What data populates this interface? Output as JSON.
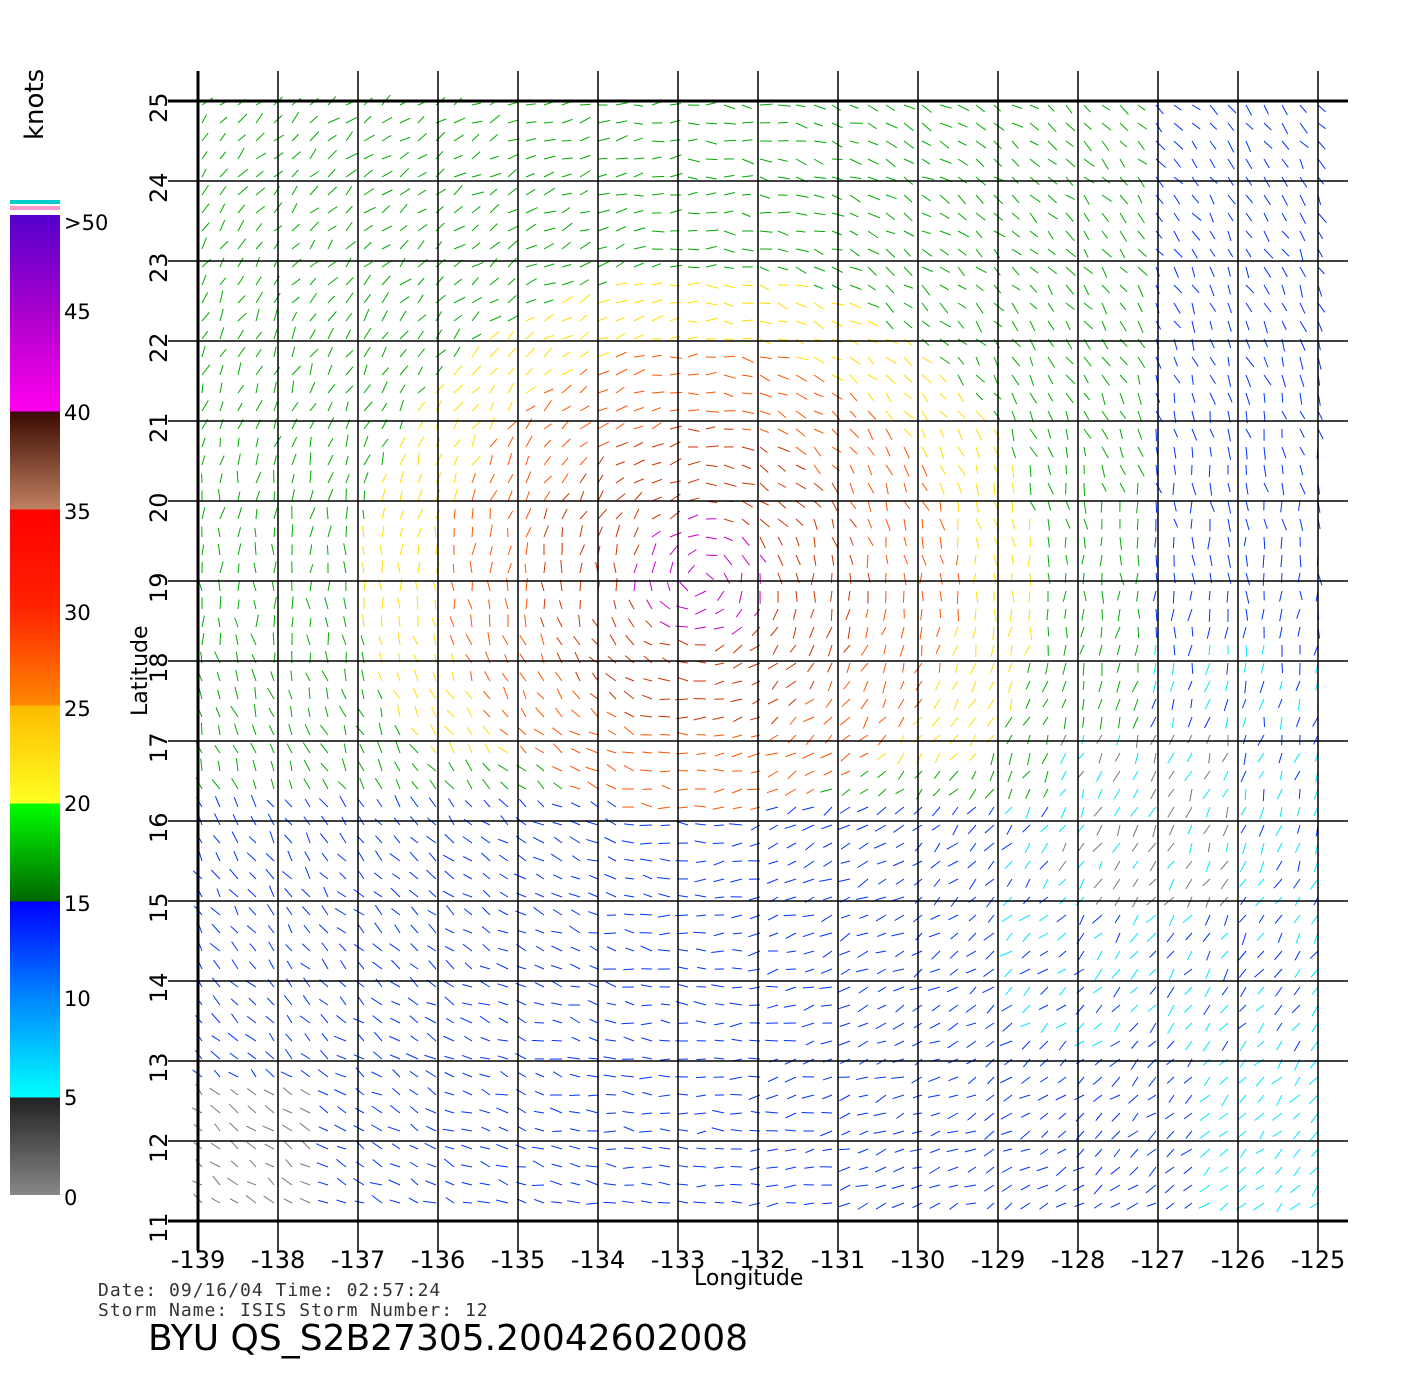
{
  "colorbar": {
    "title": "knots",
    "labels": [
      ">50",
      "45",
      "40",
      "35",
      "30",
      "25",
      "20",
      "15",
      "10",
      "5",
      "0"
    ]
  },
  "axes": {
    "xlabel": "Longitude",
    "ylabel": "Latitude",
    "x_ticks": [
      "-139",
      "-138",
      "-137",
      "-136",
      "-135",
      "-134",
      "-133",
      "-132",
      "-131",
      "-130",
      "-129",
      "-128",
      "-127",
      "-126",
      "-125"
    ],
    "y_ticks": [
      "25",
      "24",
      "23",
      "22",
      "21",
      "20",
      "19",
      "18",
      "17",
      "16",
      "15",
      "14",
      "13",
      "12",
      "11"
    ]
  },
  "footer": {
    "line1": "Date: 09/16/04   Time: 02:57:24",
    "line2": "Storm Name: ISIS   Storm Number: 12",
    "title": "BYU QS_S2B27305.20042602008"
  },
  "colors": {
    "calm": "#777777",
    "light": "#00e5ff",
    "moderate": "#0033ff",
    "fresh": "#00aa00",
    "strong": "#ffdd00",
    "gale": "#ff5500",
    "storm": "#cc3300",
    "purple": "#cc00cc"
  }
}
